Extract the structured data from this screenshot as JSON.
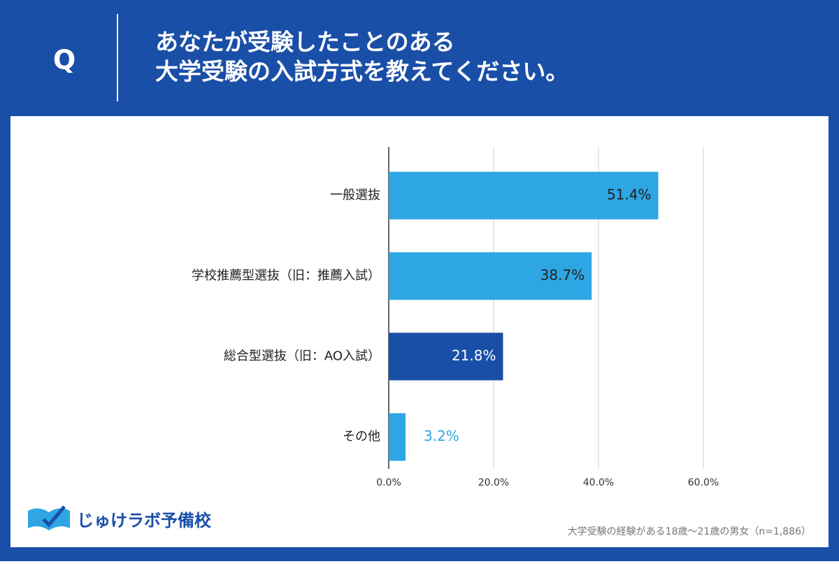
{
  "header": {
    "q": "Q",
    "title_lines": [
      "あなたが受験したことのある",
      "大学受験の入試方式を教えてください。"
    ]
  },
  "chart_data": {
    "type": "bar",
    "orientation": "horizontal",
    "categories": [
      "一般選抜",
      "学校推薦型選抜（旧：推薦入試）",
      "総合型選抜（旧：AO入試）",
      "その他"
    ],
    "values": [
      51.4,
      38.7,
      21.8,
      3.2
    ],
    "value_labels": [
      "51.4%",
      "38.7%",
      "21.8%",
      "3.2%"
    ],
    "colors": [
      "#2ea6e3",
      "#2ea6e3",
      "#1a4fa8",
      "#2ea6e3"
    ],
    "xlim": [
      0,
      60
    ],
    "xticks": [
      {
        "value": 0,
        "label": "0.0%"
      },
      {
        "value": 20,
        "label": "20.0%"
      },
      {
        "value": 40,
        "label": "40.0%"
      },
      {
        "value": 60,
        "label": "60.0%"
      }
    ],
    "grid": true
  },
  "footer": {
    "logo": "じゅけラボ予備校",
    "note": "大学受験の経験がある18歳～21歳の男女（n=1,886）"
  }
}
